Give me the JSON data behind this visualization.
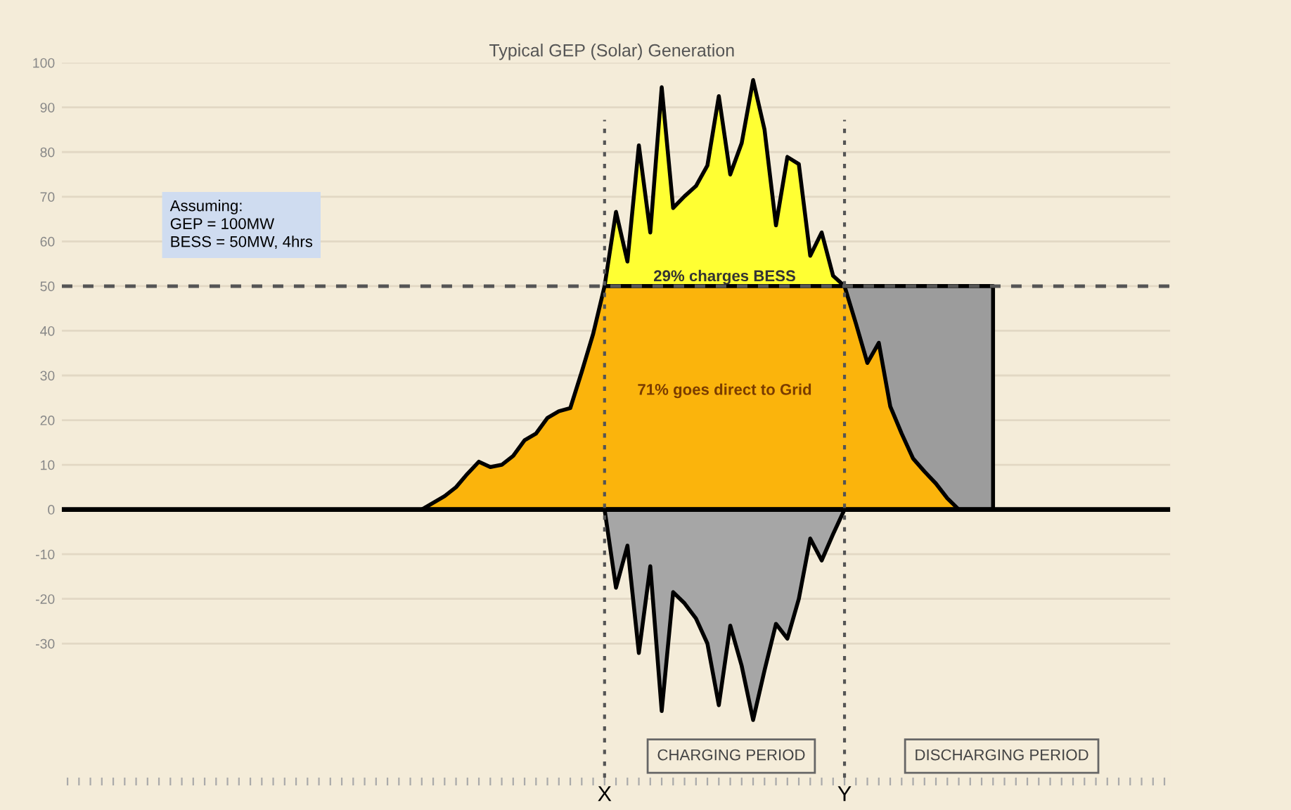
{
  "chart_data": {
    "type": "area",
    "title": "Typical GEP (Solar) Generation",
    "categories": [
      null,
      null,
      null,
      null,
      null,
      null,
      null,
      null,
      null,
      null,
      null,
      null,
      null,
      null,
      null,
      null,
      null,
      null,
      null,
      null,
      null,
      null,
      null,
      null,
      null,
      null,
      null,
      null,
      null,
      null,
      null,
      null,
      null,
      null,
      null,
      null,
      null,
      null,
      null,
      null,
      null,
      null,
      null,
      null,
      null,
      null,
      null,
      null,
      null,
      null,
      null,
      null,
      null,
      null,
      null,
      null,
      null,
      null,
      null,
      null,
      null,
      null,
      null,
      null,
      null,
      null,
      null,
      null,
      null,
      null,
      null,
      null,
      null,
      null,
      null,
      null,
      null,
      null,
      null,
      null,
      null,
      null,
      null,
      null,
      null,
      null,
      null,
      null,
      null,
      null,
      null,
      null,
      null,
      null,
      null,
      null,
      null
    ],
    "series": [
      {
        "color": "#9c9c9c",
        "values": [
          null,
          null,
          null,
          null,
          null,
          null,
          null,
          null,
          null,
          null,
          null,
          null,
          null,
          null,
          null,
          null,
          null,
          null,
          null,
          null,
          null,
          null,
          null,
          null,
          null,
          null,
          null,
          null,
          null,
          null,
          null,
          null,
          null,
          null,
          null,
          null,
          null,
          null,
          null,
          null,
          null,
          null,
          null,
          null,
          null,
          null,
          null,
          null,
          null,
          null,
          null,
          null,
          null,
          null,
          null,
          null,
          null,
          null,
          null,
          null,
          null,
          null,
          null,
          null,
          null,
          null,
          null,
          null,
          50,
          50,
          50,
          50,
          50,
          50,
          50,
          50,
          50,
          50,
          50,
          50,
          50,
          50,
          null,
          null,
          null,
          null,
          null,
          null,
          null,
          null,
          null,
          null,
          null,
          null,
          null,
          null,
          null
        ]
      },
      {
        "color": "#ffff33",
        "values": [
          null,
          null,
          null,
          null,
          null,
          null,
          null,
          null,
          null,
          null,
          null,
          null,
          null,
          null,
          null,
          null,
          null,
          null,
          null,
          null,
          null,
          null,
          null,
          null,
          null,
          null,
          null,
          null,
          null,
          null,
          null,
          null,
          null,
          null,
          null,
          null,
          null,
          null,
          null,
          null,
          null,
          null,
          null,
          null,
          null,
          null,
          null,
          50,
          66.6,
          55.5,
          81.5,
          62.0,
          94.5,
          67.5,
          70.1,
          72.4,
          77,
          92.5,
          75.0,
          82,
          96.1,
          85,
          63.6,
          78.9,
          77.3,
          56.8,
          62.0,
          52.3,
          50,
          null,
          null,
          null,
          null,
          null,
          null,
          null,
          null,
          null,
          null,
          null,
          null,
          null,
          null,
          null,
          null,
          null,
          null,
          null,
          null,
          null,
          null,
          null,
          null,
          null,
          null,
          null,
          null
        ]
      },
      {
        "color": "#fbb40c",
        "values": [
          null,
          null,
          null,
          null,
          null,
          null,
          null,
          null,
          null,
          null,
          null,
          null,
          null,
          null,
          null,
          null,
          null,
          null,
          null,
          null,
          null,
          null,
          null,
          null,
          null,
          null,
          null,
          null,
          null,
          null,
          null,
          0,
          1.5,
          3,
          5,
          8,
          10.7,
          9.5,
          10,
          12,
          15.5,
          17,
          20.5,
          22,
          22.7,
          30.8,
          39.3,
          50,
          50,
          50,
          50,
          50,
          50,
          50,
          50,
          50,
          50,
          50,
          50,
          50,
          50,
          50,
          50,
          50,
          50,
          50,
          50,
          50,
          50,
          41.6,
          32.8,
          37.3,
          23.1,
          17,
          11.4,
          8.5,
          5.8,
          2.5,
          0,
          null,
          null,
          null,
          null,
          null,
          null,
          null,
          null,
          null,
          null,
          null,
          null,
          null,
          null,
          null,
          null,
          null,
          null
        ]
      },
      {
        "color": "#a6a6a6",
        "values": [
          null,
          null,
          null,
          null,
          null,
          null,
          null,
          null,
          null,
          null,
          null,
          null,
          null,
          null,
          null,
          null,
          null,
          null,
          null,
          null,
          null,
          null,
          null,
          null,
          null,
          null,
          null,
          null,
          null,
          null,
          null,
          null,
          null,
          null,
          null,
          null,
          null,
          null,
          null,
          null,
          null,
          null,
          null,
          null,
          null,
          null,
          null,
          0,
          -17.5,
          -8.1,
          -32.1,
          -12.7,
          -45.1,
          -18.5,
          -21,
          -24.4,
          -30,
          -43.8,
          -26.0,
          -35,
          -47.1,
          -36,
          -25.6,
          -28.9,
          -20,
          -6.5,
          -11.4,
          -5.5,
          0,
          null,
          null,
          null,
          null,
          null,
          null,
          null,
          null,
          null,
          null,
          null,
          null,
          null,
          null,
          null,
          null,
          null,
          null,
          null,
          null,
          null,
          null,
          null,
          null,
          null,
          null,
          null,
          null
        ]
      }
    ],
    "ylim": [
      -60,
      100
    ],
    "yticks": [
      -30,
      -20,
      -10,
      0,
      10,
      20,
      30,
      40,
      50,
      60,
      70,
      80,
      90,
      100
    ],
    "grid": "y",
    "ref_lines": [
      {
        "axis": "y",
        "value": 50,
        "line_style": "dashed",
        "color": "#555555"
      }
    ],
    "annotations": [
      "Assuming:\nGEP = 100MW\nBESS = 50MW, 4hrs",
      "29% charges BESS",
      "71% goes direct to Grid",
      "CHARGING PERIOD",
      "DISCHARGING PERIOD",
      "X",
      "Y"
    ]
  }
}
